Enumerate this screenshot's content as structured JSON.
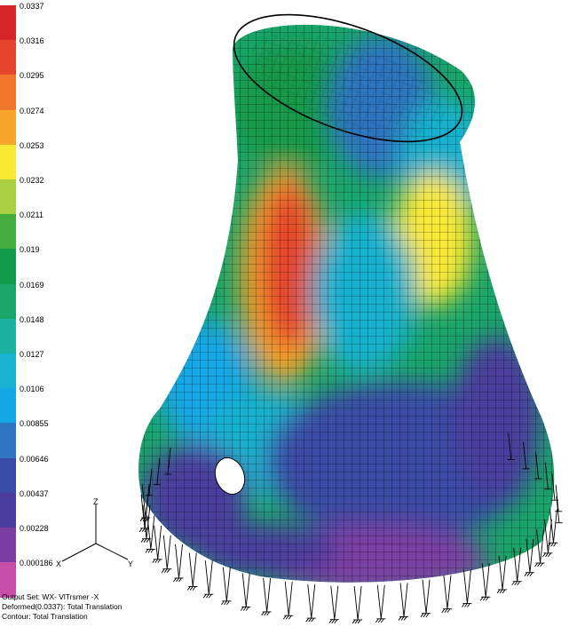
{
  "legend": {
    "colors": [
      "#d7262a",
      "#e4452c",
      "#f0772b",
      "#f8a52c",
      "#fae935",
      "#a9d044",
      "#43ae3e",
      "#139a4a",
      "#1aa56a",
      "#1bb0a0",
      "#19b2cf",
      "#14a7e6",
      "#2e75c0",
      "#3a4ba6",
      "#4b3d9e",
      "#7b3fa3",
      "#c650a9"
    ],
    "ticks": [
      "0.0337",
      "0.0316",
      "0.0295",
      "0.0274",
      "0.0253",
      "0.0232",
      "0.0211",
      "0.019",
      "0.0169",
      "0.0148",
      "0.0127",
      "0.0106",
      "0.00855",
      "0.00646",
      "0.00437",
      "0.00228",
      "0.000186"
    ]
  },
  "triad": {
    "z": "Z",
    "x": "X",
    "y": "Y"
  },
  "info": {
    "output_set": "Output Set: WX- VlTrsmer -X",
    "deformed": "Deformed(0.0337): Total Translation",
    "contour": "Contour: Total Translation"
  }
}
